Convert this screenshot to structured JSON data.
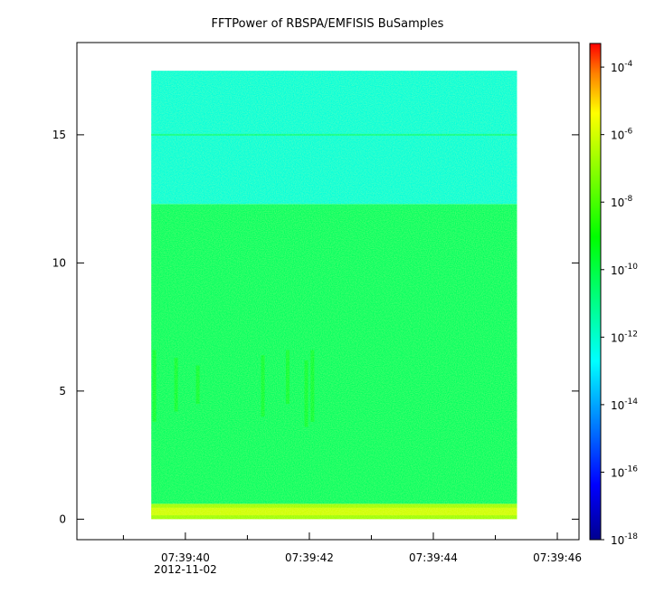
{
  "chart_data": {
    "type": "heatmap",
    "title": "FFTPower of RBSPA/EMFISIS  BuSamples",
    "xlabel": "",
    "ylabel": "",
    "ylim": [
      -0.8,
      18.6
    ],
    "xlim_seconds": [
      38.25,
      46.35
    ],
    "data_extent": {
      "x_seconds": [
        39.45,
        45.35
      ],
      "y": [
        0.0,
        17.5
      ]
    },
    "x_ticks": [
      {
        "value": 40,
        "label": "07:39:40"
      },
      {
        "value": 42,
        "label": "07:39:42"
      },
      {
        "value": 44,
        "label": "07:39:44"
      },
      {
        "value": 46,
        "label": "07:39:46"
      }
    ],
    "x_minor_ticks": [
      39,
      41,
      43,
      45
    ],
    "x_date_label": "2012-11-02",
    "y_ticks": [
      {
        "value": 0,
        "label": "0"
      },
      {
        "value": 5,
        "label": "5"
      },
      {
        "value": 10,
        "label": "10"
      },
      {
        "value": 15,
        "label": "15"
      }
    ],
    "colorbar": {
      "scale": "log",
      "range": [
        -18,
        -3.3
      ],
      "ticks": [
        {
          "exp": -4,
          "base": "10",
          "sup": "-4"
        },
        {
          "exp": -6,
          "base": "10",
          "sup": "-6"
        },
        {
          "exp": -8,
          "base": "10",
          "sup": "-8"
        },
        {
          "exp": -10,
          "base": "10",
          "sup": "-10"
        },
        {
          "exp": -12,
          "base": "10",
          "sup": "-12"
        },
        {
          "exp": -14,
          "base": "10",
          "sup": "-14"
        },
        {
          "exp": -16,
          "base": "10",
          "sup": "-16"
        },
        {
          "exp": -18,
          "base": "10",
          "sup": "-18"
        }
      ],
      "colormap": "rainbow"
    },
    "bands": [
      {
        "y_from": 0.0,
        "y_to": 0.6,
        "log_power": -6.8
      },
      {
        "y_from": 0.6,
        "y_to": 12.3,
        "log_power": -10.4
      },
      {
        "y_from": 12.3,
        "y_to": 17.5,
        "log_power": -12.2
      },
      {
        "y": 15.0,
        "log_power": -11.0
      }
    ],
    "bursts": [
      {
        "x_seconds": 39.5,
        "y_from": 3.8,
        "y_to": 6.6
      },
      {
        "x_seconds": 39.85,
        "y_from": 4.2,
        "y_to": 6.3
      },
      {
        "x_seconds": 40.2,
        "y_from": 4.5,
        "y_to": 6.0
      },
      {
        "x_seconds": 41.25,
        "y_from": 4.0,
        "y_to": 6.4
      },
      {
        "x_seconds": 41.65,
        "y_from": 4.5,
        "y_to": 6.6
      },
      {
        "x_seconds": 41.95,
        "y_from": 3.6,
        "y_to": 6.2
      },
      {
        "x_seconds": 42.05,
        "y_from": 3.8,
        "y_to": 6.6
      }
    ]
  }
}
